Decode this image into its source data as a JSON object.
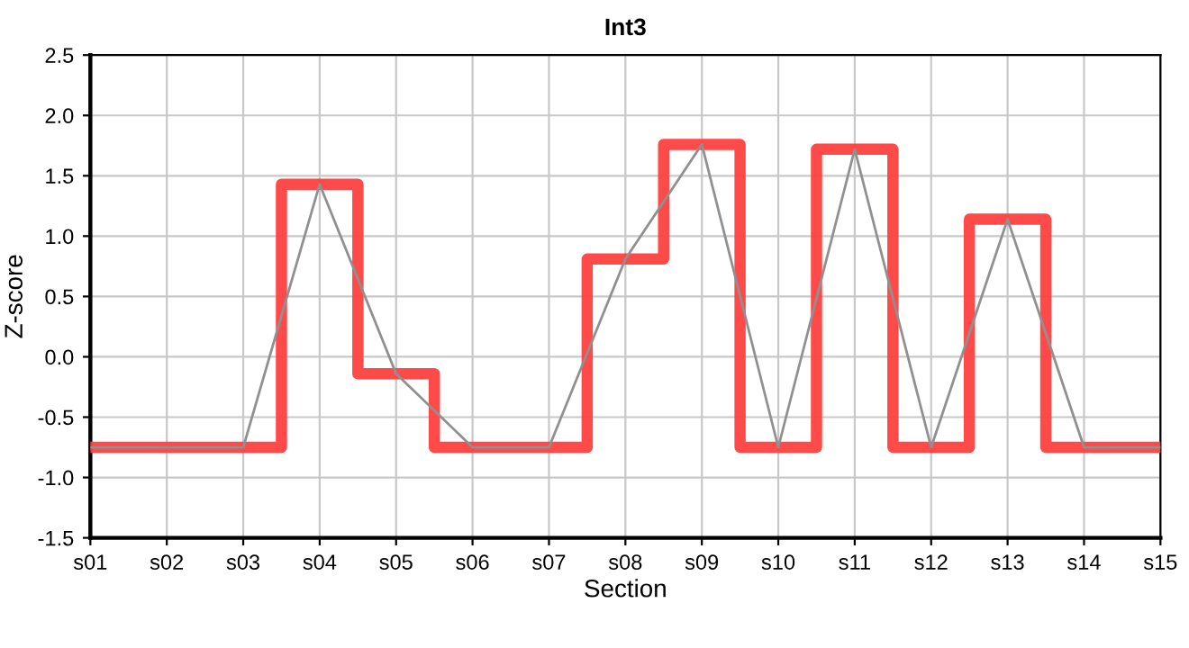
{
  "chart_data": {
    "type": "step",
    "title": "Int3",
    "xlabel": "Section",
    "ylabel": "Z-score",
    "categories": [
      "s01",
      "s02",
      "s03",
      "s04",
      "s05",
      "s06",
      "s07",
      "s08",
      "s09",
      "s10",
      "s11",
      "s12",
      "s13",
      "s14",
      "s15"
    ],
    "series": [
      {
        "color": "#ff4040",
        "values": [
          -0.75,
          -0.75,
          -0.75,
          1.43,
          -0.14,
          -0.75,
          -0.75,
          0.81,
          1.76,
          -0.75,
          1.72,
          -0.75,
          1.14,
          -0.75,
          -0.75
        ]
      },
      {
        "type": "line",
        "color": "#909090",
        "values": [
          -0.75,
          -0.75,
          -0.75,
          1.43,
          -0.14,
          -0.75,
          -0.75,
          0.81,
          1.76,
          -0.75,
          1.72,
          -0.75,
          1.14,
          -0.75,
          -0.75
        ]
      }
    ],
    "ylim": [
      -1.5,
      2.5
    ],
    "yticks": [
      {
        "value": -1.5,
        "label": "-1.5"
      },
      {
        "value": -1.0,
        "label": "-1.0"
      },
      {
        "value": -0.5,
        "label": "-0.5"
      },
      {
        "value": 0,
        "label": "0.0"
      },
      {
        "value": 0.5,
        "label": "0.5"
      },
      {
        "value": 1.0,
        "label": "1.0"
      },
      {
        "value": 1.5,
        "label": "1.5"
      },
      {
        "value": 2.0,
        "label": "2.0"
      },
      {
        "value": 2.5,
        "label": "2.5"
      }
    ],
    "grid": true,
    "marker": "none",
    "line_style": "solid"
  }
}
